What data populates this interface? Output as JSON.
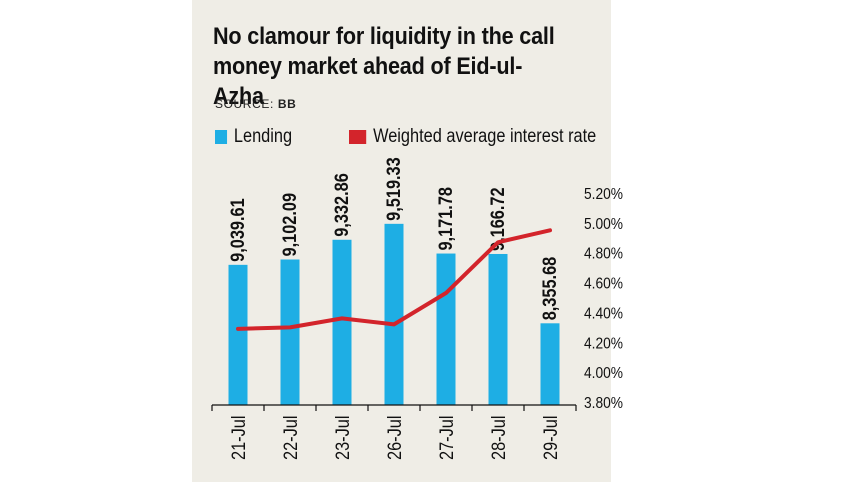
{
  "chart_data": {
    "type": "bar",
    "title": "No clamour for liquidity in the call money market ahead of Eid-ul-Azha",
    "source_label": "SOURCE:",
    "source_value": "BB",
    "categories": [
      "21-Jul",
      "22-Jul",
      "23-Jul",
      "26-Jul",
      "27-Jul",
      "28-Jul",
      "29-Jul"
    ],
    "series": [
      {
        "name": "Lending",
        "type": "bar",
        "color": "#1eaee4",
        "values": [
          9039.61,
          9102.09,
          9332.86,
          9519.33,
          9171.78,
          9166.72,
          8355.68
        ],
        "labels": [
          "9,039.61",
          "9,102.09",
          "9,332.86",
          "9,519.33",
          "9,171.78",
          "9,166.72",
          "8,355.68"
        ]
      },
      {
        "name": "Weighted average interest rate",
        "type": "line",
        "color": "#d3242b",
        "axis": "right",
        "values": [
          4.29,
          4.3,
          4.36,
          4.32,
          4.53,
          4.87,
          4.95
        ]
      }
    ],
    "y_right": {
      "ticks": [
        "3.80%",
        "4.00%",
        "4.20%",
        "4.40%",
        "4.60%",
        "4.80%",
        "5.00%",
        "5.20%"
      ],
      "tick_values": [
        3.8,
        4.0,
        4.2,
        4.4,
        4.6,
        4.8,
        5.0,
        5.2
      ],
      "range": [
        3.8,
        5.2
      ]
    },
    "bar_axis_range": [
      7400,
      9880
    ],
    "grid": false,
    "legend_placement": "top"
  }
}
